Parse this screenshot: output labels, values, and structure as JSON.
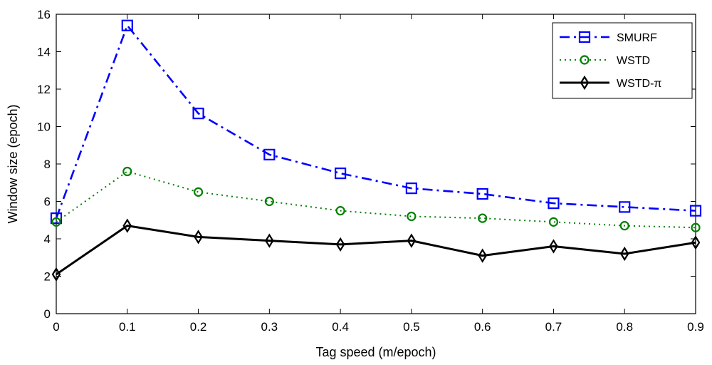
{
  "chart_data": {
    "type": "line",
    "title": "",
    "xlabel": "Tag speed (m/epoch)",
    "ylabel": "Window size (epoch)",
    "xlim": [
      0,
      0.9
    ],
    "ylim": [
      0,
      16
    ],
    "x": [
      0,
      0.1,
      0.2,
      0.3,
      0.4,
      0.5,
      0.6,
      0.7,
      0.8,
      0.9
    ],
    "x_ticks": [
      "0",
      "0.1",
      "0.2",
      "0.3",
      "0.4",
      "0.5",
      "0.6",
      "0.7",
      "0.8",
      "0.9"
    ],
    "y_ticks": [
      "0",
      "2",
      "4",
      "6",
      "8",
      "10",
      "12",
      "14",
      "16"
    ],
    "grid": false,
    "legend_position": "top-right",
    "series": [
      {
        "name": "SMURF",
        "color": "#0000ff",
        "line_style": "dash-dot",
        "marker": "square",
        "values": [
          5.1,
          15.4,
          10.7,
          8.5,
          7.5,
          6.7,
          6.4,
          5.9,
          5.7,
          5.5
        ]
      },
      {
        "name": "WSTD",
        "color": "#008000",
        "line_style": "dotted",
        "marker": "circle",
        "values": [
          4.9,
          7.6,
          6.5,
          6.0,
          5.5,
          5.2,
          5.1,
          4.9,
          4.7,
          4.6
        ]
      },
      {
        "name": "WSTD-π",
        "color": "#000000",
        "line_style": "solid",
        "marker": "diamond",
        "values": [
          2.1,
          4.7,
          4.1,
          3.9,
          3.7,
          3.9,
          3.1,
          3.6,
          3.2,
          3.8
        ]
      }
    ]
  }
}
